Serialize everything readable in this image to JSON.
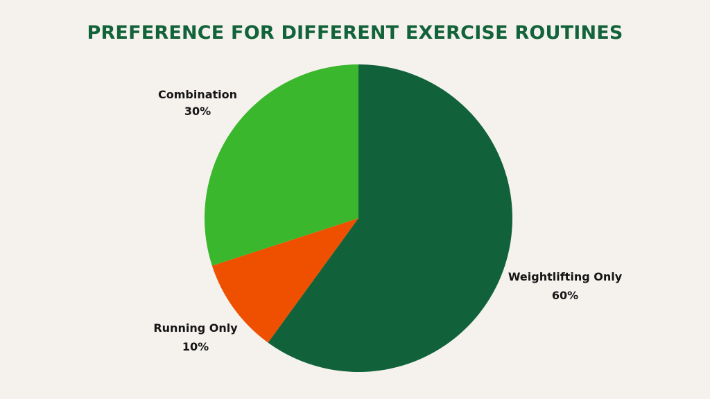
{
  "chart_data": {
    "type": "pie",
    "title": "PREFERENCE FOR DIFFERENT EXERCISE ROUTINES",
    "slices": [
      {
        "label": "Weightlifting Only",
        "value": 60,
        "value_label": "60%",
        "color": "#11623a"
      },
      {
        "label": "Running Only",
        "value": 10,
        "value_label": "10%",
        "color": "#ef5000"
      },
      {
        "label": "Combination",
        "value": 30,
        "value_label": "30%",
        "color": "#3ab72c"
      }
    ],
    "start": "top",
    "direction": "clockwise"
  }
}
